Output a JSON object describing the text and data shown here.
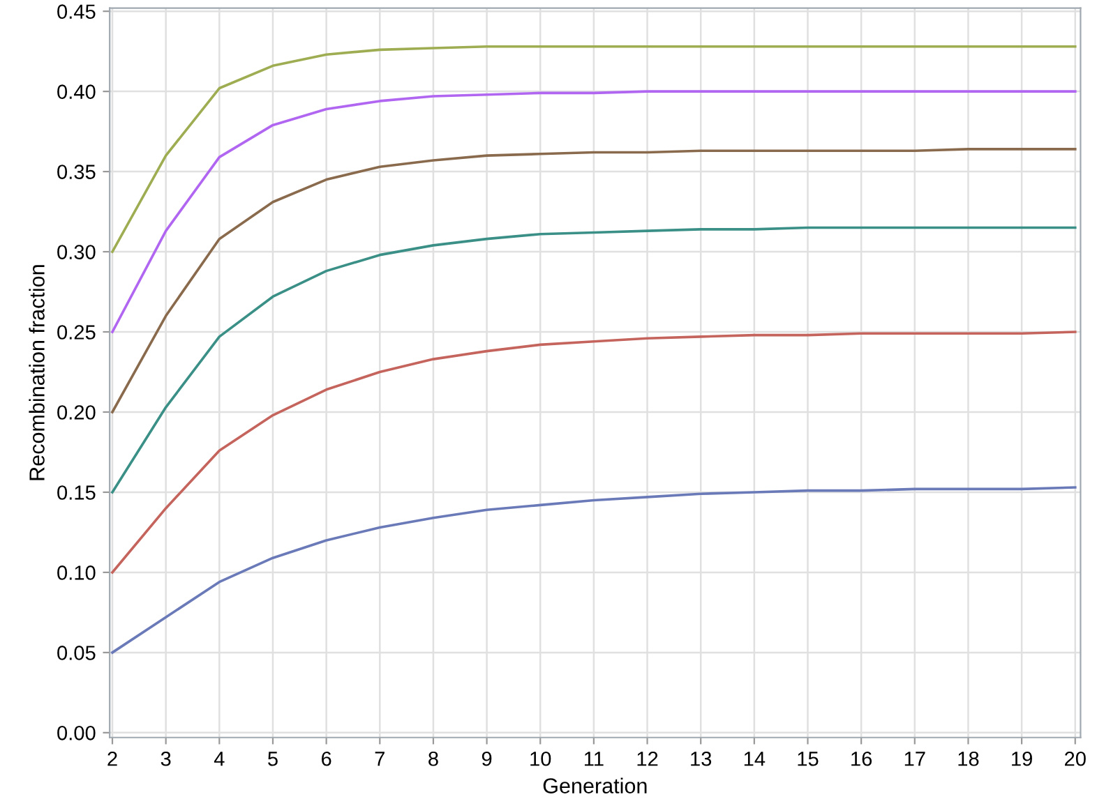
{
  "chart_data": {
    "type": "line",
    "xlabel": "Generation",
    "ylabel": "Recombination fraction",
    "x": [
      2,
      3,
      4,
      5,
      6,
      7,
      8,
      9,
      10,
      11,
      12,
      13,
      14,
      15,
      16,
      17,
      18,
      19,
      20
    ],
    "xlim": [
      1.95,
      20.1
    ],
    "xticks": [
      2,
      3,
      4,
      5,
      6,
      7,
      8,
      9,
      10,
      11,
      12,
      13,
      14,
      15,
      16,
      17,
      18,
      19,
      20
    ],
    "ylim": [
      -0.003,
      0.452
    ],
    "yticks": [
      {
        "value": 0,
        "label": "0.00"
      },
      {
        "value": 0.05,
        "label": "0.05"
      },
      {
        "value": 0.1,
        "label": "0.10"
      },
      {
        "value": 0.15,
        "label": "0.15"
      },
      {
        "value": 0.2,
        "label": "0.20"
      },
      {
        "value": 0.25,
        "label": "0.25"
      },
      {
        "value": 0.3,
        "label": "0.30"
      },
      {
        "value": 0.35,
        "label": "0.35"
      },
      {
        "value": 0.4,
        "label": "0.40"
      },
      {
        "value": 0.45,
        "label": "0.45"
      }
    ],
    "grid": true,
    "marker": "none",
    "line_style": "solid",
    "series": [
      {
        "color": "#6a7ab8",
        "values": [
          0.05,
          0.072,
          0.094,
          0.109,
          0.12,
          0.128,
          0.134,
          0.139,
          0.142,
          0.145,
          0.147,
          0.149,
          0.15,
          0.151,
          0.151,
          0.152,
          0.152,
          0.152,
          0.153
        ]
      },
      {
        "color": "#c4645c",
        "values": [
          0.1,
          0.14,
          0.176,
          0.198,
          0.214,
          0.225,
          0.233,
          0.238,
          0.242,
          0.244,
          0.246,
          0.247,
          0.248,
          0.248,
          0.249,
          0.249,
          0.249,
          0.249,
          0.25
        ]
      },
      {
        "color": "#3a8f86",
        "values": [
          0.15,
          0.203,
          0.247,
          0.272,
          0.288,
          0.298,
          0.304,
          0.308,
          0.311,
          0.312,
          0.313,
          0.314,
          0.314,
          0.315,
          0.315,
          0.315,
          0.315,
          0.315,
          0.315
        ]
      },
      {
        "color": "#8a6a4c",
        "values": [
          0.2,
          0.26,
          0.308,
          0.331,
          0.345,
          0.353,
          0.357,
          0.36,
          0.361,
          0.362,
          0.362,
          0.363,
          0.363,
          0.363,
          0.363,
          0.363,
          0.364,
          0.364,
          0.364
        ]
      },
      {
        "color": "#b066f0",
        "values": [
          0.25,
          0.313,
          0.359,
          0.379,
          0.389,
          0.394,
          0.397,
          0.398,
          0.399,
          0.399,
          0.4,
          0.4,
          0.4,
          0.4,
          0.4,
          0.4,
          0.4,
          0.4,
          0.4
        ]
      },
      {
        "color": "#9ead52",
        "values": [
          0.3,
          0.36,
          0.402,
          0.416,
          0.423,
          0.426,
          0.427,
          0.428,
          0.428,
          0.428,
          0.428,
          0.428,
          0.428,
          0.428,
          0.428,
          0.428,
          0.428,
          0.428,
          0.428
        ]
      }
    ]
  }
}
